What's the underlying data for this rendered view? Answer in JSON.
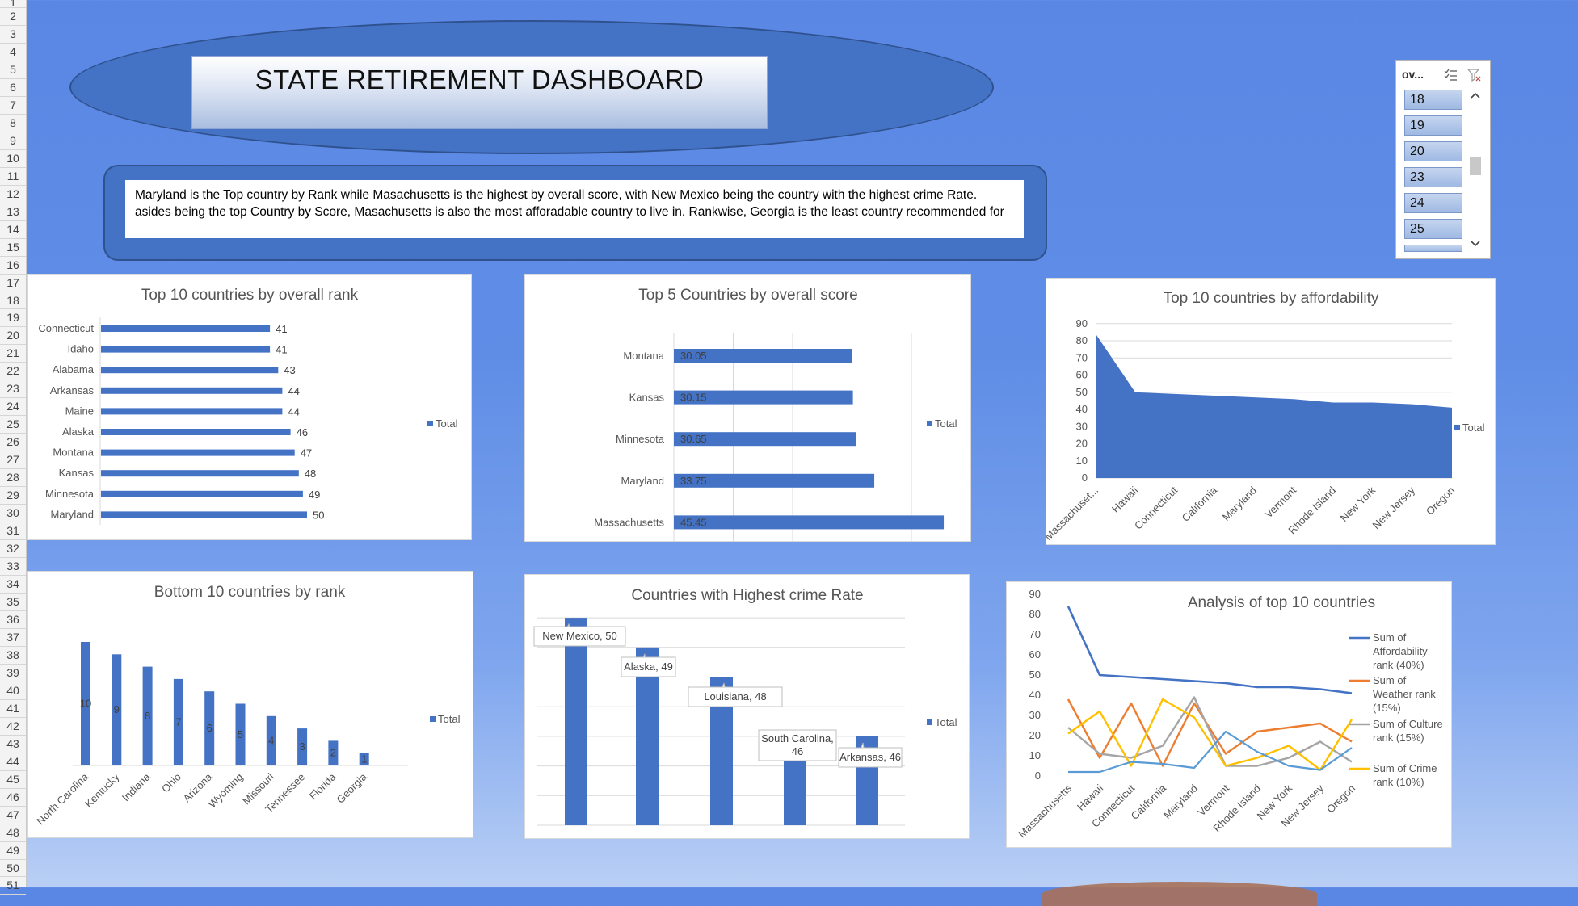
{
  "row_numbers": [
    "1",
    "2",
    "3",
    "4",
    "5",
    "6",
    "7",
    "8",
    "9",
    "10",
    "11",
    "12",
    "13",
    "14",
    "15",
    "16",
    "17",
    "18",
    "19",
    "20",
    "21",
    "22",
    "23",
    "24",
    "25",
    "26",
    "27",
    "28",
    "29",
    "30",
    "31",
    "32",
    "33",
    "34",
    "35",
    "36",
    "37",
    "38",
    "39",
    "40",
    "41",
    "42",
    "43",
    "44",
    "45",
    "46",
    "47",
    "48",
    "49",
    "50",
    "51"
  ],
  "dashboard": {
    "title": "STATE RETIREMENT DASHBOARD",
    "summary_line1": "Maryland is the Top country by Rank while Masachusetts is the highest by overall score, with New Mexico being the country with the highest crime Rate.",
    "summary_line2": "asides being the top Country by Score, Masachusetts is also the most afforadable country to live in. Rankwise, Georgia is the least country recommended for"
  },
  "slicer": {
    "title": "ov...",
    "items": [
      "18",
      "19",
      "20",
      "23",
      "24",
      "25"
    ],
    "multi_select_icon": "multi-select-icon",
    "clear_filter_icon": "clear-filter-icon"
  },
  "colors": {
    "bar": "#4472c4",
    "affordability": "#4472c4",
    "weather": "#ed7d31",
    "culture": "#a5a5a5",
    "crime": "#ffc000",
    "extra": "#5b9bd5"
  },
  "chart_data": [
    {
      "id": "c1",
      "type": "bar",
      "orientation": "horizontal",
      "title": "Top 10 countries by overall rank",
      "categories": [
        "Connecticut",
        "Idaho",
        "Alabama",
        "Arkansas",
        "Maine",
        "Alaska",
        "Montana",
        "Kansas",
        "Minnesota",
        "Maryland"
      ],
      "series": [
        {
          "name": "Total",
          "values": [
            41,
            41,
            43,
            44,
            44,
            46,
            47,
            48,
            49,
            50
          ]
        }
      ],
      "legend": "right",
      "data_labels": "outside end"
    },
    {
      "id": "c2",
      "type": "bar",
      "orientation": "horizontal",
      "title": "Top 5 Countries by overall score",
      "categories": [
        "Montana",
        "Kansas",
        "Minnesota",
        "Maryland",
        "Massachusetts"
      ],
      "series": [
        {
          "name": "Total",
          "values": [
            30.05,
            30.15,
            30.65,
            33.75,
            45.45
          ]
        }
      ],
      "labels": [
        "30.05",
        "30.15",
        "30.65",
        "33.75",
        "45.45"
      ],
      "xlim": [
        0,
        50
      ],
      "grid": true,
      "legend": "right",
      "data_labels": "inside base"
    },
    {
      "id": "c3",
      "type": "area",
      "title": "Top 10 countries by affordability",
      "categories": [
        "Massachuset...",
        "Hawaii",
        "Connecticut",
        "California",
        "Maryland",
        "Vermont",
        "Rhode Island",
        "New York",
        "New Jersey",
        "Oregon"
      ],
      "series": [
        {
          "name": "Total",
          "values": [
            84,
            50,
            49,
            48,
            47,
            46,
            44,
            44,
            43,
            41
          ]
        }
      ],
      "ylim": [
        0,
        90
      ],
      "yticks": [
        0,
        10,
        20,
        30,
        40,
        50,
        60,
        70,
        80,
        90
      ],
      "grid": true,
      "legend": "right"
    },
    {
      "id": "c4",
      "type": "bar",
      "orientation": "vertical",
      "title": "Bottom 10 countries by rank",
      "categories": [
        "North Carolina",
        "Kentucky",
        "Indiana",
        "Ohio",
        "Arizona",
        "Wyoming",
        "Missouri",
        "Tennessee",
        "Florida",
        "Georgia"
      ],
      "series": [
        {
          "name": "Total",
          "values": [
            10,
            9,
            8,
            7,
            6,
            5,
            4,
            3,
            2,
            1
          ]
        }
      ],
      "labels": [
        "10",
        "9",
        "8",
        "7",
        "6",
        "5",
        "4",
        "3",
        "2",
        "1"
      ],
      "legend": "right",
      "data_labels": "center"
    },
    {
      "id": "c5",
      "type": "bar",
      "orientation": "vertical",
      "title": "Countries with Highest crime Rate",
      "categories": [
        "New Mexico",
        "Alaska",
        "Louisiana",
        "South Carolina",
        "Arkansas"
      ],
      "series": [
        {
          "name": "Total",
          "values": [
            50,
            49,
            48,
            46,
            46
          ]
        }
      ],
      "callouts": [
        "New Mexico, 50",
        "Alaska, 49",
        "Louisiana, 48",
        "South Carolina, 46",
        "Arkansas, 46"
      ],
      "ylim": [
        43,
        50
      ],
      "grid": true,
      "legend": "right"
    },
    {
      "id": "c6",
      "type": "line",
      "title": "Analysis of top 10 countries",
      "categories": [
        "Massachusetts",
        "Hawaii",
        "Connecticut",
        "California",
        "Maryland",
        "Vermont",
        "Rhode Island",
        "New York",
        "New Jersey",
        "Oregon"
      ],
      "ylim": [
        0,
        90
      ],
      "yticks": [
        0,
        10,
        20,
        30,
        40,
        50,
        60,
        70,
        80,
        90
      ],
      "series": [
        {
          "name": "Sum of Affordability rank (40%)",
          "values": [
            84,
            50,
            49,
            48,
            47,
            46,
            44,
            44,
            43,
            41
          ]
        },
        {
          "name": "Sum of Weather rank (15%)",
          "values": [
            38,
            9,
            36,
            5,
            36,
            11,
            22,
            24,
            26,
            17
          ]
        },
        {
          "name": "Sum of Culture rank (15%)",
          "values": [
            24,
            11,
            9,
            15,
            39,
            5,
            5,
            9,
            17,
            7
          ]
        },
        {
          "name": "Sum of Crime rank (10%)",
          "values": [
            21,
            32,
            5,
            38,
            29,
            5,
            9,
            15,
            3,
            28
          ]
        },
        {
          "name": "",
          "values": [
            2,
            2,
            7,
            6,
            4,
            22,
            12,
            5,
            3,
            14
          ]
        }
      ],
      "legend_lines": [
        [
          "Sum of",
          "Affordability",
          "rank (40%)"
        ],
        [
          "Sum of",
          "Weather rank",
          "(15%)"
        ],
        [
          "Sum of Culture",
          "rank (15%)"
        ],
        [
          "Sum of Crime",
          "rank (10%)"
        ]
      ],
      "legend": "right"
    }
  ],
  "legend_total": "Total"
}
